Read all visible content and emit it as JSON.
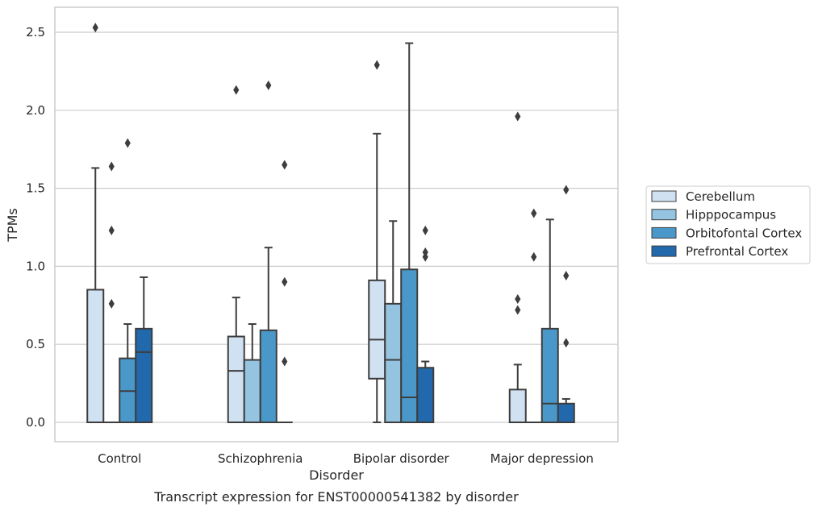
{
  "chart_data": {
    "type": "boxplot",
    "title": "",
    "caption": "Transcript expression for ENST00000541382 by disorder",
    "xlabel": "Disorder",
    "ylabel": "TPMs",
    "ylim": [
      -0.12,
      2.66
    ],
    "yticks": [
      0.0,
      0.5,
      1.0,
      1.5,
      2.0,
      2.5
    ],
    "ytick_labels": [
      "0.0",
      "0.5",
      "1.0",
      "1.5",
      "2.0",
      "2.5"
    ],
    "grid": "horizontal",
    "legend_position": "right",
    "categories": [
      "Control",
      "Schizophrenia",
      "Bipolar disorder",
      "Major depression"
    ],
    "series": [
      {
        "name": "Cerebellum",
        "color": "#d0e1f2",
        "boxes": [
          {
            "min": 0.0,
            "q1": 0.0,
            "median": 0.0,
            "q3": 0.85,
            "max": 1.63,
            "outliers": [
              2.53
            ]
          },
          {
            "min": 0.0,
            "q1": 0.0,
            "median": 0.33,
            "q3": 0.55,
            "max": 0.8,
            "outliers": [
              2.13
            ]
          },
          {
            "min": 0.0,
            "q1": 0.28,
            "median": 0.53,
            "q3": 0.91,
            "max": 1.85,
            "outliers": [
              2.29
            ]
          },
          {
            "min": 0.0,
            "q1": 0.0,
            "median": 0.0,
            "q3": 0.21,
            "max": 0.37,
            "outliers": [
              0.72,
              0.79,
              1.96
            ]
          }
        ]
      },
      {
        "name": "Hipppocampus",
        "color": "#94c4df",
        "boxes": [
          {
            "min": 0.0,
            "q1": 0.0,
            "median": 0.0,
            "q3": 0.0,
            "max": 0.0,
            "outliers": [
              0.76,
              1.23,
              1.64
            ]
          },
          {
            "min": 0.0,
            "q1": 0.0,
            "median": 0.0,
            "q3": 0.4,
            "max": 0.63,
            "outliers": []
          },
          {
            "min": 0.0,
            "q1": 0.0,
            "median": 0.4,
            "q3": 0.76,
            "max": 1.29,
            "outliers": []
          },
          {
            "min": 0.0,
            "q1": 0.0,
            "median": 0.0,
            "q3": 0.0,
            "max": 0.0,
            "outliers": [
              1.06,
              1.34
            ]
          }
        ]
      },
      {
        "name": "Orbitofontal Cortex",
        "color": "#4a98c9",
        "boxes": [
          {
            "min": 0.0,
            "q1": 0.0,
            "median": 0.2,
            "q3": 0.41,
            "max": 0.63,
            "outliers": [
              1.79
            ]
          },
          {
            "min": 0.0,
            "q1": 0.0,
            "median": 0.0,
            "q3": 0.59,
            "max": 1.12,
            "outliers": [
              2.16
            ]
          },
          {
            "min": 0.0,
            "q1": 0.0,
            "median": 0.16,
            "q3": 0.98,
            "max": 2.43,
            "outliers": []
          },
          {
            "min": 0.0,
            "q1": 0.0,
            "median": 0.12,
            "q3": 0.6,
            "max": 1.3,
            "outliers": []
          }
        ]
      },
      {
        "name": "Prefrontal Cortex",
        "color": "#2268ac",
        "boxes": [
          {
            "min": 0.0,
            "q1": 0.0,
            "median": 0.45,
            "q3": 0.6,
            "max": 0.93,
            "outliers": []
          },
          {
            "min": 0.0,
            "q1": 0.0,
            "median": 0.0,
            "q3": 0.0,
            "max": 0.0,
            "outliers": [
              0.39,
              0.9,
              1.65
            ]
          },
          {
            "min": 0.0,
            "q1": 0.0,
            "median": 0.0,
            "q3": 0.35,
            "max": 0.39,
            "outliers": [
              1.06,
              1.09,
              1.23
            ]
          },
          {
            "min": 0.0,
            "q1": 0.0,
            "median": 0.0,
            "q3": 0.12,
            "max": 0.15,
            "outliers": [
              0.51,
              0.94,
              1.49
            ]
          }
        ]
      }
    ]
  }
}
